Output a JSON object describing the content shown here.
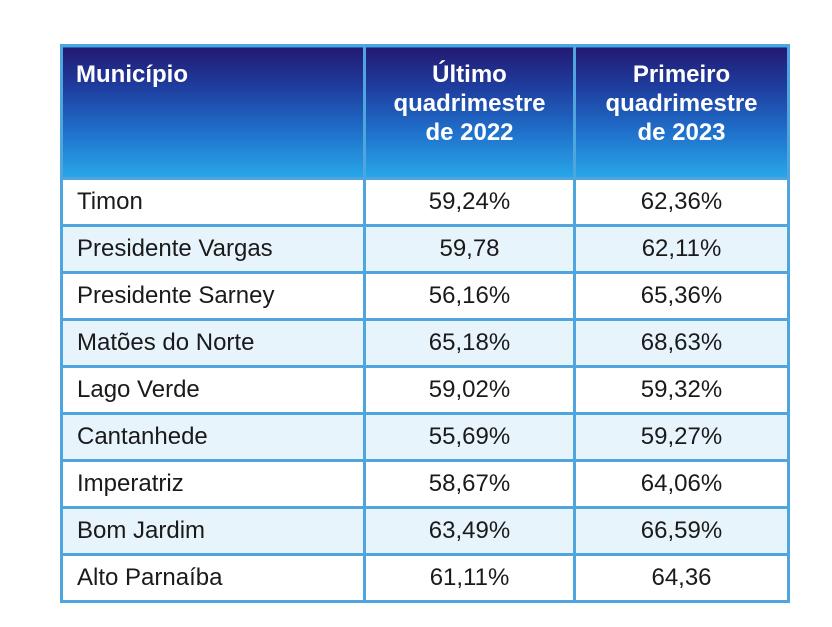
{
  "table": {
    "headers": {
      "municipio": "Município",
      "col2": [
        "Último",
        "quadrimestre",
        "de 2022"
      ],
      "col3": [
        "Primeiro",
        "quadrimestre",
        "de 2023"
      ]
    },
    "rows": [
      {
        "municipio": "Timon",
        "q2022": "59,24%",
        "q2023": "62,36%"
      },
      {
        "municipio": "Presidente Vargas",
        "q2022": "59,78",
        "q2023": "62,11%"
      },
      {
        "municipio": "Presidente Sarney",
        "q2022": "56,16%",
        "q2023": "65,36%"
      },
      {
        "municipio": "Matões do Norte",
        "q2022": "65,18%",
        "q2023": "68,63%"
      },
      {
        "municipio": "Lago Verde",
        "q2022": "59,02%",
        "q2023": "59,32%"
      },
      {
        "municipio": "Cantanhede",
        "q2022": "55,69%",
        "q2023": "59,27%"
      },
      {
        "municipio": "Imperatriz",
        "q2022": "58,67%",
        "q2023": "64,06%"
      },
      {
        "municipio": "Bom Jardim",
        "q2022": "63,49%",
        "q2023": "66,59%"
      },
      {
        "municipio": "Alto Parnaíba",
        "q2022": "61,11%",
        "q2023": "64,36"
      }
    ],
    "colors": {
      "border": "#4fa6de",
      "header_top": "#231a73",
      "header_bottom": "#28a7ea",
      "row_alt": "#e8f4fc"
    }
  }
}
